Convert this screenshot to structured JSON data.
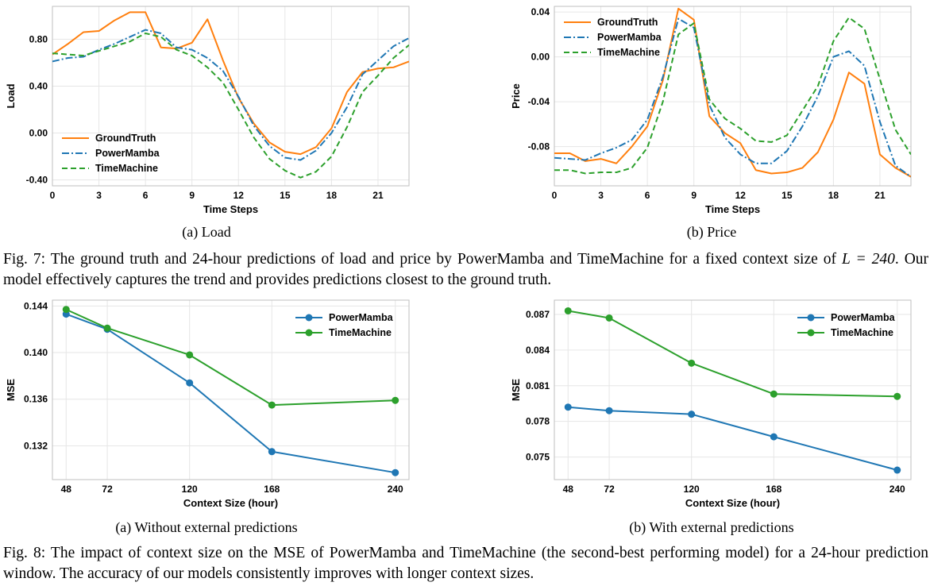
{
  "fig7": {
    "caption_label": "Fig. 7:",
    "caption_text": "The ground truth and 24-hour predictions of load and price by PowerMamba and TimeMachine for a fixed context size of",
    "caption_math": "L = 240",
    "caption_tail": ". Our model effectively captures the trend and provides predictions closest to the ground truth.",
    "subcaptions": [
      "(a) Load",
      "(b) Price"
    ]
  },
  "fig8": {
    "caption_label": "Fig. 8:",
    "caption_text": "The impact of context size on the MSE of PowerMamba and TimeMachine (the second-best performing model) for a 24-hour prediction window. The accuracy of our models consistently improves with longer context sizes.",
    "subcaptions": [
      "(a) Without external predictions",
      "(b) With external predictions"
    ]
  },
  "colors": {
    "groundtruth": "#ff7f0e",
    "powermamba": "#1f77b4",
    "timemachine": "#2ca02c",
    "grid": "#e6e6e6"
  },
  "chart_data": [
    {
      "id": "load",
      "type": "line",
      "xlabel": "Time Steps",
      "ylabel": "Load",
      "xlim": [
        0,
        23
      ],
      "ylim": [
        -0.45,
        1.08
      ],
      "xticks": [
        0,
        3,
        6,
        9,
        12,
        15,
        18,
        21
      ],
      "yticks": [
        -0.4,
        0.0,
        0.4,
        0.8
      ],
      "ytick_labels": [
        "-0.40",
        "0.00",
        "0.40",
        "0.80"
      ],
      "legend_position": "lower-left",
      "grid": true,
      "x": [
        0,
        1,
        2,
        3,
        4,
        5,
        6,
        7,
        8,
        9,
        10,
        11,
        12,
        13,
        14,
        15,
        16,
        17,
        18,
        19,
        20,
        21,
        22,
        23
      ],
      "series": [
        {
          "name": "GroundTruth",
          "style": "solid",
          "color": "#ff7f0e",
          "values": [
            0.67,
            0.76,
            0.86,
            0.87,
            0.96,
            1.03,
            1.03,
            0.73,
            0.72,
            0.77,
            0.97,
            0.62,
            0.3,
            0.08,
            -0.08,
            -0.16,
            -0.18,
            -0.12,
            0.04,
            0.35,
            0.52,
            0.55,
            0.56,
            0.61
          ]
        },
        {
          "name": "PowerMamba",
          "style": "dashdot",
          "color": "#1f77b4",
          "values": [
            0.61,
            0.64,
            0.65,
            0.71,
            0.76,
            0.82,
            0.88,
            0.85,
            0.73,
            0.71,
            0.64,
            0.53,
            0.31,
            0.06,
            -0.11,
            -0.21,
            -0.23,
            -0.15,
            0.0,
            0.22,
            0.5,
            0.62,
            0.74,
            0.81
          ]
        },
        {
          "name": "TimeMachine",
          "style": "dashed",
          "color": "#2ca02c",
          "values": [
            0.68,
            0.67,
            0.66,
            0.7,
            0.74,
            0.78,
            0.85,
            0.82,
            0.71,
            0.66,
            0.56,
            0.43,
            0.2,
            -0.04,
            -0.22,
            -0.32,
            -0.38,
            -0.33,
            -0.2,
            0.05,
            0.35,
            0.49,
            0.64,
            0.75
          ]
        }
      ]
    },
    {
      "id": "price",
      "type": "line",
      "xlabel": "Time Steps",
      "ylabel": "Price",
      "xlim": [
        0,
        23
      ],
      "ylim": [
        -0.115,
        0.045
      ],
      "xticks": [
        0,
        3,
        6,
        9,
        12,
        15,
        18,
        21
      ],
      "yticks": [
        -0.08,
        -0.04,
        0.0,
        0.04
      ],
      "ytick_labels": [
        "-0.08",
        "-0.04",
        "0.00",
        "0.04"
      ],
      "legend_position": "upper-left",
      "grid": true,
      "x": [
        0,
        1,
        2,
        3,
        4,
        5,
        6,
        7,
        8,
        9,
        10,
        11,
        12,
        13,
        14,
        15,
        16,
        17,
        18,
        19,
        20,
        21,
        22,
        23
      ],
      "series": [
        {
          "name": "GroundTruth",
          "style": "solid",
          "color": "#ff7f0e",
          "values": [
            -0.086,
            -0.086,
            -0.093,
            -0.091,
            -0.095,
            -0.08,
            -0.062,
            -0.021,
            0.043,
            0.033,
            -0.053,
            -0.068,
            -0.077,
            -0.101,
            -0.104,
            -0.103,
            -0.099,
            -0.085,
            -0.056,
            -0.014,
            -0.024,
            -0.087,
            -0.099,
            -0.107
          ]
        },
        {
          "name": "PowerMamba",
          "style": "dashdot",
          "color": "#1f77b4",
          "values": [
            -0.09,
            -0.091,
            -0.092,
            -0.086,
            -0.081,
            -0.074,
            -0.056,
            -0.018,
            0.034,
            0.026,
            -0.043,
            -0.072,
            -0.087,
            -0.095,
            -0.095,
            -0.084,
            -0.062,
            -0.035,
            0.0,
            0.005,
            -0.008,
            -0.058,
            -0.097,
            -0.107
          ]
        },
        {
          "name": "TimeMachine",
          "style": "dashed",
          "color": "#2ca02c",
          "values": [
            -0.101,
            -0.101,
            -0.104,
            -0.103,
            -0.103,
            -0.099,
            -0.081,
            -0.04,
            0.02,
            0.03,
            -0.038,
            -0.055,
            -0.064,
            -0.075,
            -0.076,
            -0.07,
            -0.048,
            -0.026,
            0.014,
            0.035,
            0.025,
            -0.02,
            -0.065,
            -0.087
          ]
        }
      ]
    },
    {
      "id": "mse-without",
      "type": "line",
      "xlabel": "Context Size (hour)",
      "ylabel": "MSE",
      "xlim": [
        40,
        248
      ],
      "ylim": [
        0.1291,
        0.1445
      ],
      "xticks": [
        48,
        72,
        120,
        168,
        240
      ],
      "yticks": [
        0.132,
        0.136,
        0.14,
        0.144
      ],
      "ytick_labels": [
        "0.132",
        "0.136",
        "0.140",
        "0.144"
      ],
      "legend_position": "upper-right",
      "grid": true,
      "markers": true,
      "x": [
        48,
        72,
        120,
        168,
        240
      ],
      "series": [
        {
          "name": "PowerMamba",
          "style": "solid",
          "color": "#1f77b4",
          "values": [
            0.1433,
            0.142,
            0.1374,
            0.1315,
            0.1297
          ]
        },
        {
          "name": "TimeMachine",
          "style": "solid",
          "color": "#2ca02c",
          "values": [
            0.1437,
            0.1421,
            0.1398,
            0.1355,
            0.1359
          ]
        }
      ]
    },
    {
      "id": "mse-with",
      "type": "line",
      "xlabel": "Context Size (hour)",
      "ylabel": "MSE",
      "xlim": [
        40,
        248
      ],
      "ylim": [
        0.0731,
        0.0882
      ],
      "xticks": [
        48,
        72,
        120,
        168,
        240
      ],
      "yticks": [
        0.075,
        0.078,
        0.081,
        0.084,
        0.087
      ],
      "ytick_labels": [
        "0.075",
        "0.078",
        "0.081",
        "0.084",
        "0.087"
      ],
      "legend_position": "upper-right",
      "grid": true,
      "markers": true,
      "x": [
        48,
        72,
        120,
        168,
        240
      ],
      "series": [
        {
          "name": "PowerMamba",
          "style": "solid",
          "color": "#1f77b4",
          "values": [
            0.0792,
            0.0789,
            0.0786,
            0.0767,
            0.0739
          ]
        },
        {
          "name": "TimeMachine",
          "style": "solid",
          "color": "#2ca02c",
          "values": [
            0.0873,
            0.0867,
            0.0829,
            0.0803,
            0.0801
          ]
        }
      ]
    }
  ]
}
